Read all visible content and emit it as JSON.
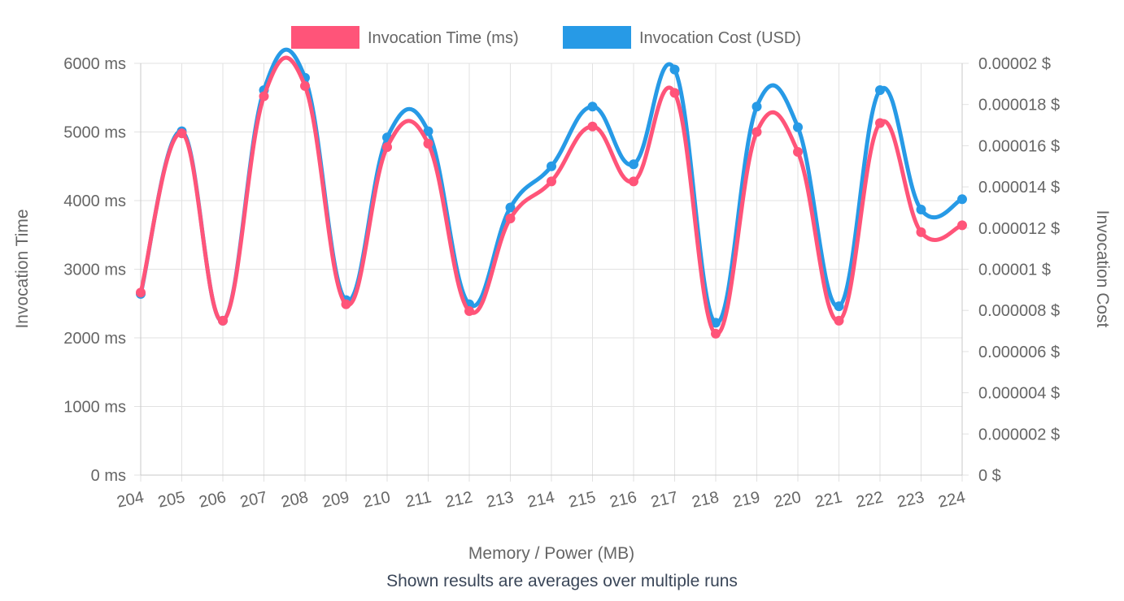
{
  "chart_data": {
    "type": "line",
    "categories": [
      "204",
      "205",
      "206",
      "207",
      "208",
      "209",
      "210",
      "211",
      "212",
      "213",
      "214",
      "215",
      "216",
      "217",
      "218",
      "219",
      "220",
      "221",
      "222",
      "223",
      "224"
    ],
    "series": [
      {
        "name": "Invocation Time (ms)",
        "axis": "left",
        "color": "#ff5479",
        "values": [
          2660,
          4980,
          2250,
          5520,
          5670,
          2490,
          4780,
          4830,
          2390,
          3740,
          4280,
          5080,
          4280,
          5570,
          2060,
          5000,
          4710,
          2250,
          5130,
          3540,
          3640
        ]
      },
      {
        "name": "Invocation Cost (USD)",
        "axis": "right",
        "color": "#279ae6",
        "values": [
          8.8e-06,
          1.67e-05,
          7.5e-06,
          1.87e-05,
          1.93e-05,
          8.5e-06,
          1.64e-05,
          1.67e-05,
          8.3e-06,
          1.3e-05,
          1.5e-05,
          1.79e-05,
          1.51e-05,
          1.97e-05,
          7.4e-06,
          1.79e-05,
          1.69e-05,
          8.2e-06,
          1.87e-05,
          1.29e-05,
          1.34e-05
        ]
      }
    ],
    "y_left": {
      "label": "Invocation Time",
      "range": [
        0,
        6000
      ],
      "ticks": [
        "0 ms",
        "1000 ms",
        "2000 ms",
        "3000 ms",
        "4000 ms",
        "5000 ms",
        "6000 ms"
      ]
    },
    "y_right": {
      "label": "Invocation Cost",
      "range": [
        0,
        2e-05
      ],
      "ticks": [
        "0 $",
        "0.000002 $",
        "0.000004 $",
        "0.000006 $",
        "0.000008 $",
        "0.00001 $",
        "0.000012 $",
        "0.000014 $",
        "0.000016 $",
        "0.000018 $",
        "0.00002 $"
      ]
    },
    "xlabel": "Memory / Power (MB)",
    "grid": true,
    "legend_position": "top-center"
  },
  "footer_note": "Shown results are averages over multiple runs"
}
